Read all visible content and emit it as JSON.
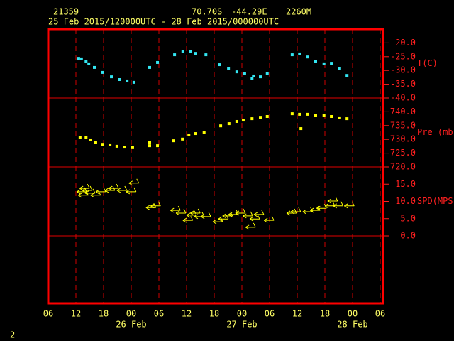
{
  "header": {
    "station": "21359",
    "lat": "70.70S",
    "lon": "-44.29E",
    "elev": "2260M",
    "period": "25 Feb 2015/120000UTC - 28 Feb 2015/000000UTC",
    "page": "2"
  },
  "chart_data": [
    {
      "type": "scatter",
      "label": "T(C)",
      "color": "#33e6f2",
      "xlim": [
        0,
        72
      ],
      "ylim": [
        -40,
        -15
      ],
      "yticks": [
        {
          "value": -20,
          "label": "-20.0"
        },
        {
          "value": -25,
          "label": "-25.0"
        },
        {
          "value": -30,
          "label": "-30.0"
        },
        {
          "value": -35,
          "label": "-35.0"
        },
        {
          "value": -40,
          "label": "-40.0"
        }
      ],
      "x": [
        6.6,
        7.2,
        8.2,
        8.8,
        10.0,
        11.8,
        13.7,
        15.5,
        17.1,
        18.6,
        22.0,
        23.7,
        27.4,
        29.2,
        30.8,
        32.0,
        34.2,
        37.2,
        39.1,
        40.9,
        42.6,
        44.2,
        44.5,
        46.0,
        47.5,
        52.9,
        54.5,
        56.2,
        58.0,
        59.8,
        61.4,
        63.2,
        64.8
      ],
      "values": [
        -25.6,
        -25.8,
        -26.8,
        -27.6,
        -28.9,
        -30.7,
        -32.3,
        -33.3,
        -33.8,
        -34.3,
        -28.9,
        -27.1,
        -24.3,
        -23.2,
        -23.0,
        -23.8,
        -24.3,
        -27.9,
        -29.4,
        -30.5,
        -31.2,
        -32.8,
        -32.0,
        -32.3,
        -31.0,
        -24.3,
        -24.0,
        -25.1,
        -26.6,
        -27.6,
        -27.4,
        -29.4,
        -31.8
      ]
    },
    {
      "type": "scatter",
      "label": "Pre (mb)",
      "color": "#ffff00",
      "xlim": [
        0,
        72
      ],
      "ylim": [
        720,
        745
      ],
      "yticks": [
        {
          "value": 740,
          "label": "740.0"
        },
        {
          "value": 735,
          "label": "735.0"
        },
        {
          "value": 730,
          "label": "730.0"
        },
        {
          "value": 725,
          "label": "725.0"
        },
        {
          "value": 720,
          "label": "720.0"
        }
      ],
      "x": [
        6.9,
        8.2,
        9.1,
        10.3,
        11.8,
        13.4,
        14.9,
        16.5,
        18.3,
        22.0,
        22.0,
        23.7,
        27.2,
        29.1,
        30.5,
        32.0,
        33.8,
        37.4,
        39.2,
        40.9,
        42.3,
        44.2,
        46.0,
        47.5,
        52.9,
        54.5,
        54.8,
        56.2,
        58.0,
        59.8,
        61.4,
        63.2,
        64.8
      ],
      "values": [
        730.8,
        730.6,
        729.8,
        728.8,
        728.2,
        728.0,
        727.5,
        727.2,
        727.0,
        729.0,
        727.7,
        727.7,
        729.5,
        730.1,
        731.6,
        732.1,
        732.6,
        734.9,
        735.7,
        736.5,
        737.0,
        737.5,
        738.0,
        738.3,
        739.3,
        739.1,
        733.9,
        739.1,
        738.8,
        738.6,
        738.3,
        737.8,
        737.5
      ]
    },
    {
      "type": "wind",
      "label": "SPD(MPS)",
      "color": "#ffff00",
      "xlim": [
        0,
        72
      ],
      "ylim": [
        0,
        20
      ],
      "yticks": [
        {
          "value": 15,
          "label": "15.0"
        },
        {
          "value": 10,
          "label": "10.0"
        },
        {
          "value": 5,
          "label": "5.0"
        },
        {
          "value": 0,
          "label": "0.0"
        }
      ],
      "xticks": [
        {
          "value": 0,
          "label": "06"
        },
        {
          "value": 6,
          "label": "12"
        },
        {
          "value": 12,
          "label": "18"
        },
        {
          "value": 18,
          "label": "00"
        },
        {
          "value": 24,
          "label": "06"
        },
        {
          "value": 30,
          "label": "12"
        },
        {
          "value": 36,
          "label": "18"
        },
        {
          "value": 42,
          "label": "00"
        },
        {
          "value": 48,
          "label": "06"
        },
        {
          "value": 54,
          "label": "12"
        },
        {
          "value": 60,
          "label": "18"
        },
        {
          "value": 66,
          "label": "00"
        },
        {
          "value": 72,
          "label": "06"
        }
      ],
      "date_labels": [
        {
          "value": 18,
          "label": "26 Feb"
        },
        {
          "value": 42,
          "label": "27 Feb"
        },
        {
          "value": 66,
          "label": "28 Feb"
        }
      ],
      "x": [
        6.2,
        6.5,
        6.8,
        7.4,
        8.0,
        9.2,
        10.3,
        12.3,
        13.1,
        14.9,
        16.9,
        17.5,
        21.2,
        22.2,
        26.5,
        27.7,
        29.2,
        30.0,
        30.8,
        31.7,
        33.1,
        35.7,
        36.9,
        37.8,
        39.1,
        40.6,
        42.2,
        42.8,
        43.7,
        44.6,
        46.8,
        51.7,
        52.6,
        55.2,
        56.8,
        58.2,
        60.0,
        60.6,
        61.8,
        64.2
      ],
      "values": [
        12.8,
        11.8,
        13.8,
        13.2,
        12.4,
        11.8,
        12.8,
        13.2,
        13.8,
        13.2,
        12.8,
        15.3,
        8.2,
        8.7,
        7.4,
        6.6,
        4.5,
        6.0,
        6.6,
        5.6,
        5.6,
        4.1,
        4.9,
        5.8,
        6.2,
        6.6,
        5.8,
        2.5,
        4.9,
        6.2,
        4.5,
        6.6,
        7.0,
        7.0,
        7.4,
        8.0,
        8.7,
        10.1,
        8.7,
        8.7
      ]
    }
  ]
}
